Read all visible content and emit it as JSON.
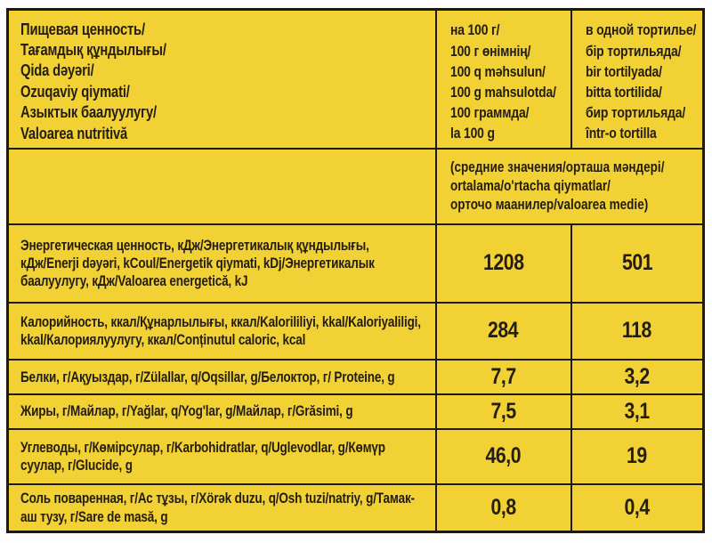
{
  "colors": {
    "page_bg": "#fdfdfd",
    "table_bg": "#f2d134",
    "grid": "#1d1a12",
    "text": "#251e0f"
  },
  "table": {
    "header": {
      "title": "Пищевая ценность/\nТағамдық құндылығы/\nQida dəyəri/\nOzuqaviy qiymati/\nАзыктык баалуулугу/\nValoarea nutritivă",
      "per_100g": "на 100 г/\n100 г өнімнің/\n100 q məhsulun/\n100 g mahsulotda/\n100 граммда/\nla 100 g",
      "per_tortilla": "в одной тортилье/\nбір тортильяда/\nbir tortilyada/\nbitta tortilida/\nбир тортильяда/\nîntr-o tortilla"
    },
    "average_note": "(средние значения/орташа мәндері/\nortalama/o'rtacha qiymatlar/\nорточо маанилер/valoarea medie)",
    "rows": [
      {
        "label": "Энергетическая ценность, кДж/Энергетикалық құндылығы, кДж/Enerji dəyəri, kCoul/Energetik qiymati, kDj/Энергетикалык баалуулугу, кДж/Valoarea energetică, kJ",
        "per_100g": "1208",
        "per_tortilla": "501"
      },
      {
        "label": "Калорийность, ккал/Құнарлылығы, ккал/Kalorililiyi, kkal/Kaloriyaliligi, kkal/Калориялуулугу, ккал/Conținutul caloric, kcal",
        "per_100g": "284",
        "per_tortilla": "118"
      },
      {
        "label": "Белки, г/Ақуыздар, г/Zülallar, q/Oqsillar, g/Белоктор, г/ Proteine, g",
        "per_100g": "7,7",
        "per_tortilla": "3,2"
      },
      {
        "label": "Жиры, г/Майлар, г/Yağlar, q/Yog'lar, g/Майлар, г/Grăsimi, g",
        "per_100g": "7,5",
        "per_tortilla": "3,1"
      },
      {
        "label": "Углеводы, г/Көмірсулар, г/Karbohidratlar, q/Uglevodlar, g/Көмүр суулар, г/Glucide, g",
        "per_100g": "46,0",
        "per_tortilla": "19"
      },
      {
        "label": "Соль поваренная, г/Ас тұзы, г/Xörək duzu, q/Osh tuzi/natriy, g/Тамак-аш тузу, г/Sare de masă, g",
        "per_100g": "0,8",
        "per_tortilla": "0,4"
      }
    ]
  }
}
